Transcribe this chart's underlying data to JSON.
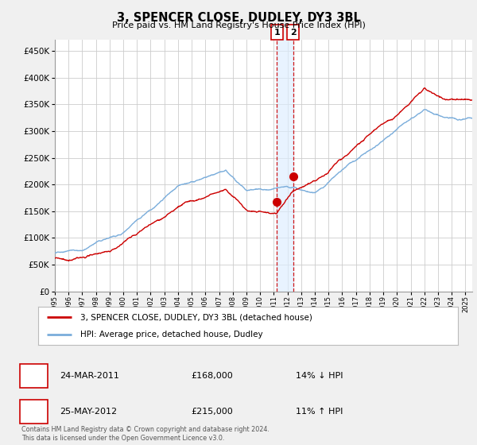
{
  "title": "3, SPENCER CLOSE, DUDLEY, DY3 3BL",
  "subtitle": "Price paid vs. HM Land Registry's House Price Index (HPI)",
  "red_label": "3, SPENCER CLOSE, DUDLEY, DY3 3BL (detached house)",
  "blue_label": "HPI: Average price, detached house, Dudley",
  "sale1_date": "24-MAR-2011",
  "sale1_price": 168000,
  "sale1_hpi": "14% ↓ HPI",
  "sale2_date": "25-MAY-2012",
  "sale2_price": 215000,
  "sale2_hpi": "11% ↑ HPI",
  "footer": "Contains HM Land Registry data © Crown copyright and database right 2024.\nThis data is licensed under the Open Government Licence v3.0.",
  "ylim": [
    0,
    470000
  ],
  "yticks": [
    0,
    50000,
    100000,
    150000,
    200000,
    250000,
    300000,
    350000,
    400000,
    450000
  ],
  "xlim_start": 1995.0,
  "xlim_end": 2025.5,
  "sale1_x": 2011.22,
  "sale2_x": 2012.4,
  "red_color": "#cc0000",
  "blue_color": "#7aaddb",
  "bg_color": "#f0f0f0",
  "plot_bg": "#ffffff",
  "grid_color": "#cccccc",
  "shade_color": "#ddeeff"
}
